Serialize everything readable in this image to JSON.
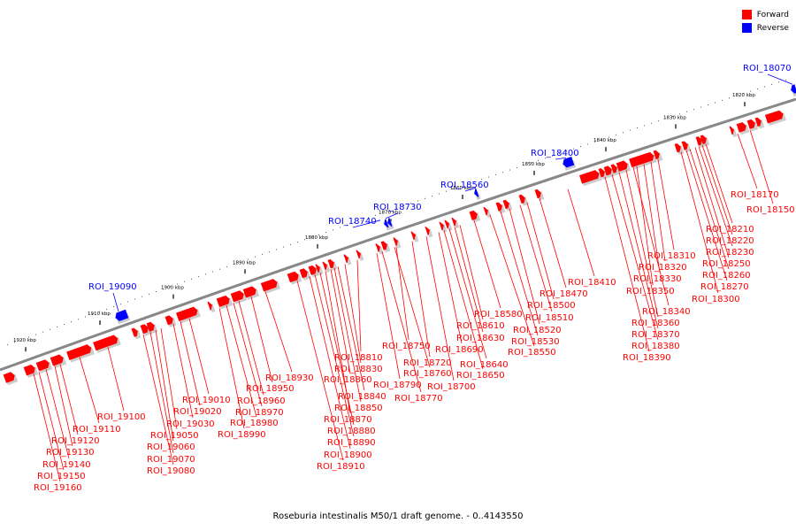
{
  "legend": {
    "forward": {
      "label": "Forward",
      "color": "#ff0000"
    },
    "reverse": {
      "label": "Reverse",
      "color": "#0000ff"
    }
  },
  "caption": "Roseburia intestinalis M50/1 draft genome. - 0..4143550",
  "axis_ticks": [
    "1820 kbp",
    "1830 kbp",
    "1840 kbp",
    "1850 kbp",
    "1860 kbp",
    "1870 kbp",
    "1880 kbp",
    "1890 kbp",
    "1900 kbp",
    "1910 kbp",
    "1920 kbp"
  ],
  "labels": {
    "forward": [
      "ROI_18150",
      "ROI_18170",
      "ROI_18210",
      "ROI_18220",
      "ROI_18230",
      "ROI_18250",
      "ROI_18260",
      "ROI_18270",
      "ROI_18300",
      "ROI_18310",
      "ROI_18320",
      "ROI_18330",
      "ROI_18340",
      "ROI_18350",
      "ROI_18360",
      "ROI_18370",
      "ROI_18380",
      "ROI_18390",
      "ROI_18410",
      "ROI_18470",
      "ROI_18500",
      "ROI_18510",
      "ROI_18520",
      "ROI_18530",
      "ROI_18550",
      "ROI_18580",
      "ROI_18610",
      "ROI_18630",
      "ROI_18640",
      "ROI_18650",
      "ROI_18690",
      "ROI_18700",
      "ROI_18720",
      "ROI_18750",
      "ROI_18760",
      "ROI_18770",
      "ROI_18790",
      "ROI_18810",
      "ROI_18830",
      "ROI_18840",
      "ROI_18850",
      "ROI_18860",
      "ROI_18870",
      "ROI_18880",
      "ROI_18890",
      "ROI_18900",
      "ROI_18910",
      "ROI_18930",
      "ROI_18950",
      "ROI_18960",
      "ROI_18970",
      "ROI_18980",
      "ROI_18990",
      "ROI_19010",
      "ROI_19020",
      "ROI_19030",
      "ROI_19050",
      "ROI_19060",
      "ROI_19070",
      "ROI_19080",
      "ROI_19100",
      "ROI_19110",
      "ROI_19120",
      "ROI_19130",
      "ROI_19140",
      "ROI_19150",
      "ROI_19160"
    ],
    "reverse": [
      "ROI_18070",
      "ROI_18400",
      "ROI_18560",
      "ROI_18730",
      "ROI_18740",
      "ROI_19090"
    ]
  }
}
